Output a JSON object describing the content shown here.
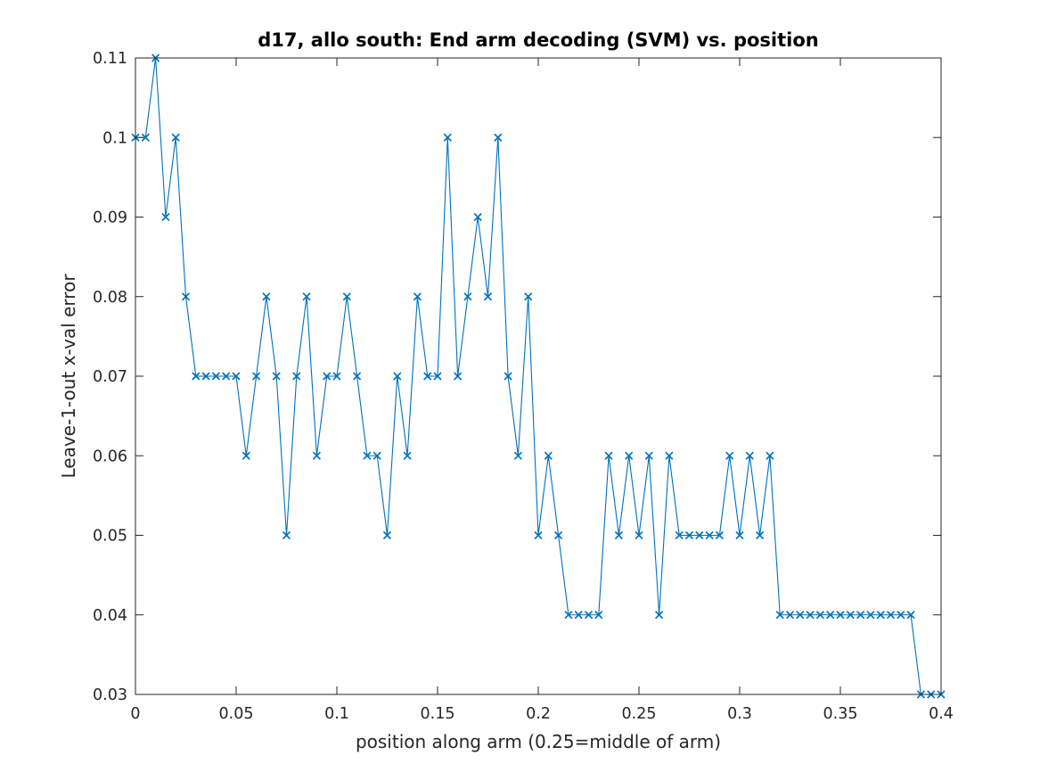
{
  "chart_data": {
    "type": "line",
    "title": "d17, allo south: End arm decoding (SVM) vs. position",
    "xlabel": "position along arm (0.25=middle of arm)",
    "ylabel": "Leave-1-out x-val error",
    "xlim": [
      0,
      0.4
    ],
    "ylim": [
      0.03,
      0.11
    ],
    "xticks": [
      0,
      0.05,
      0.1,
      0.15,
      0.2,
      0.25,
      0.3,
      0.35,
      0.4
    ],
    "xtick_labels": [
      "0",
      "0.05",
      "0.1",
      "0.15",
      "0.2",
      "0.25",
      "0.3",
      "0.35",
      "0.4"
    ],
    "yticks": [
      0.03,
      0.04,
      0.05,
      0.06,
      0.07,
      0.08,
      0.09,
      0.1,
      0.11
    ],
    "ytick_labels": [
      "0.03",
      "0.04",
      "0.05",
      "0.06",
      "0.07",
      "0.08",
      "0.09",
      "0.1",
      "0.11"
    ],
    "grid": false,
    "marker": "x",
    "line_color": "#0072BD",
    "series": [
      {
        "x": [
          0,
          0.005,
          0.01,
          0.015,
          0.02,
          0.025,
          0.03,
          0.035,
          0.04,
          0.045,
          0.05,
          0.055,
          0.06,
          0.065,
          0.07,
          0.075,
          0.08,
          0.085,
          0.09,
          0.095,
          0.1,
          0.105,
          0.11,
          0.115,
          0.12,
          0.125,
          0.13,
          0.135,
          0.14,
          0.145,
          0.15,
          0.155,
          0.16,
          0.165,
          0.17,
          0.175,
          0.18,
          0.185,
          0.19,
          0.195,
          0.2,
          0.205,
          0.21,
          0.215,
          0.22,
          0.225,
          0.23,
          0.235,
          0.24,
          0.245,
          0.25,
          0.255,
          0.26,
          0.265,
          0.27,
          0.275,
          0.28,
          0.285,
          0.29,
          0.295,
          0.3,
          0.305,
          0.31,
          0.315,
          0.32,
          0.325,
          0.33,
          0.335,
          0.34,
          0.345,
          0.35,
          0.355,
          0.36,
          0.365,
          0.37,
          0.375,
          0.38,
          0.385,
          0.39,
          0.395,
          0.4
        ],
        "y": [
          0.1,
          0.1,
          0.11,
          0.09,
          0.1,
          0.08,
          0.07,
          0.07,
          0.07,
          0.07,
          0.07,
          0.06,
          0.07,
          0.08,
          0.07,
          0.05,
          0.07,
          0.08,
          0.06,
          0.07,
          0.07,
          0.08,
          0.07,
          0.06,
          0.06,
          0.05,
          0.07,
          0.06,
          0.08,
          0.07,
          0.07,
          0.1,
          0.07,
          0.08,
          0.09,
          0.08,
          0.1,
          0.07,
          0.06,
          0.08,
          0.05,
          0.06,
          0.05,
          0.04,
          0.04,
          0.04,
          0.04,
          0.06,
          0.05,
          0.06,
          0.05,
          0.06,
          0.04,
          0.06,
          0.05,
          0.05,
          0.05,
          0.05,
          0.05,
          0.06,
          0.05,
          0.06,
          0.05,
          0.06,
          0.04,
          0.04,
          0.04,
          0.04,
          0.04,
          0.04,
          0.04,
          0.04,
          0.04,
          0.04,
          0.04,
          0.04,
          0.04,
          0.04,
          0.03,
          0.03,
          0.03
        ]
      }
    ]
  }
}
